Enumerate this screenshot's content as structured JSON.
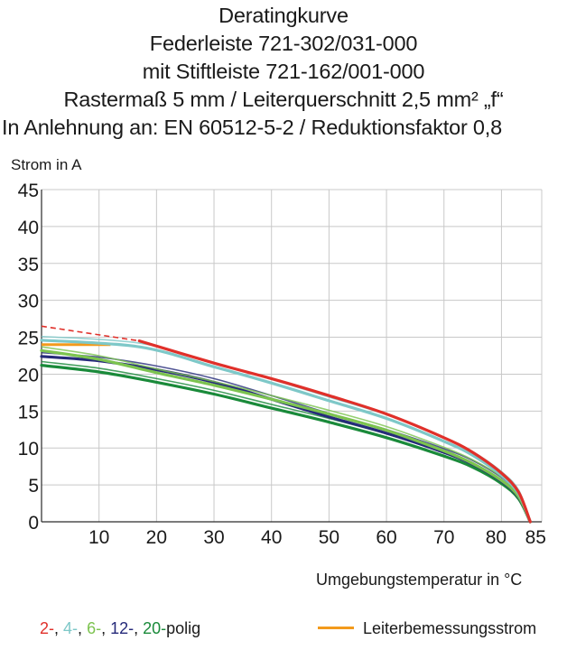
{
  "title_lines": [
    "Deratingkurve",
    "Federleiste 721-302/031-000",
    "mit Stiftleiste 721-162/001-000",
    "Rastermaß 5 mm / Leiterquerschnitt 2,5 mm² „f“",
    "In Anlehnung an: EN 60512-5-2 / Reduktionsfaktor 0,8"
  ],
  "legend": {
    "pole_counts": [
      {
        "label": "2-",
        "color": "#e0302a"
      },
      {
        "label": "4-",
        "color": "#7ec8c8"
      },
      {
        "label": "6-",
        "color": "#7cc34f"
      },
      {
        "label": "12-",
        "color": "#262a7a"
      },
      {
        "label": "20-",
        "color": "#1a8a3a"
      }
    ],
    "separator": ", ",
    "suffix": "polig",
    "rated_current_label": "Leiterbemessungsstrom",
    "rated_current_color": "#f39a1c"
  },
  "chart_data": {
    "type": "line",
    "title": "Deratingkurve",
    "xlabel": "Umgebungstemperatur in °C",
    "ylabel": "Strom in A",
    "xlim": [
      0,
      87
    ],
    "ylim": [
      0,
      45
    ],
    "xticks": [
      10,
      20,
      30,
      40,
      50,
      60,
      70,
      80,
      85
    ],
    "yticks": [
      0,
      5,
      10,
      15,
      20,
      25,
      30,
      35,
      40,
      45
    ],
    "grid": true,
    "rated_current": {
      "name": "Leiterbemessungsstrom",
      "value": 24,
      "color": "#f39a1c"
    },
    "series": [
      {
        "name": "2-",
        "color": "#e0302a",
        "points": [
          [
            0,
            26.5
          ],
          [
            17,
            24.5
          ],
          [
            30,
            21.5
          ],
          [
            40,
            19.4
          ],
          [
            50,
            17.1
          ],
          [
            60,
            14.6
          ],
          [
            70,
            11.4
          ],
          [
            75,
            9.4
          ],
          [
            80,
            6.6
          ],
          [
            83,
            4.0
          ],
          [
            85,
            0
          ]
        ],
        "dashed_until": 17
      },
      {
        "name": "4-",
        "color": "#7ec8c8",
        "points": [
          [
            0,
            24.6
          ],
          [
            17,
            23.7
          ],
          [
            30,
            21.0
          ],
          [
            40,
            18.8
          ],
          [
            50,
            16.4
          ],
          [
            60,
            14.0
          ],
          [
            70,
            10.9
          ],
          [
            75,
            9.0
          ],
          [
            80,
            6.3
          ],
          [
            83,
            3.8
          ],
          [
            85,
            0
          ]
        ]
      },
      {
        "name": "6-",
        "color": "#7cc34f",
        "points": [
          [
            0,
            23.2
          ],
          [
            10,
            22.0
          ],
          [
            20,
            20.2
          ],
          [
            30,
            18.5
          ],
          [
            40,
            16.6
          ],
          [
            50,
            14.6
          ],
          [
            60,
            12.4
          ],
          [
            70,
            9.6
          ],
          [
            75,
            7.9
          ],
          [
            80,
            5.6
          ],
          [
            83,
            3.4
          ],
          [
            85,
            0
          ]
        ]
      },
      {
        "name": "12-",
        "color": "#262a7a",
        "points": [
          [
            0,
            22.4
          ],
          [
            10,
            21.8
          ],
          [
            20,
            20.6
          ],
          [
            30,
            18.9
          ],
          [
            40,
            16.6
          ],
          [
            50,
            14.2
          ],
          [
            60,
            12.0
          ],
          [
            70,
            9.4
          ],
          [
            75,
            7.8
          ],
          [
            80,
            5.5
          ],
          [
            83,
            3.3
          ],
          [
            85,
            0
          ]
        ]
      },
      {
        "name": "20-",
        "color": "#1a8a3a",
        "points": [
          [
            0,
            21.2
          ],
          [
            10,
            20.3
          ],
          [
            20,
            18.9
          ],
          [
            30,
            17.3
          ],
          [
            40,
            15.4
          ],
          [
            50,
            13.5
          ],
          [
            60,
            11.4
          ],
          [
            70,
            8.9
          ],
          [
            75,
            7.4
          ],
          [
            80,
            5.2
          ],
          [
            83,
            3.1
          ],
          [
            85,
            0
          ]
        ]
      }
    ]
  }
}
